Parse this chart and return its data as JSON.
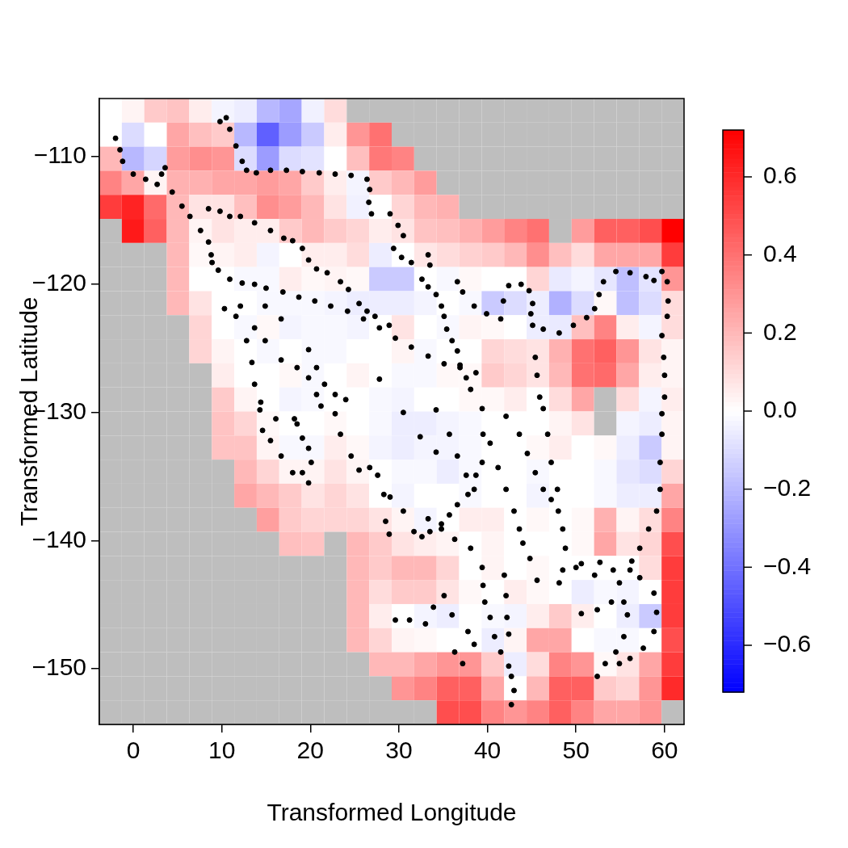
{
  "chart_data": {
    "type": "heatmap",
    "xlabel": "Transformed Longitude",
    "ylabel": "Transformed Latitude",
    "xlim": [
      -3.83,
      62.2
    ],
    "ylim": [
      -154.35,
      -105.5
    ],
    "xticks": [
      0,
      10,
      20,
      30,
      40,
      50,
      60
    ],
    "yticks": [
      {
        "value": -110,
        "label": "−110"
      },
      {
        "value": -120,
        "label": "−120"
      },
      {
        "value": -130,
        "label": "−130"
      },
      {
        "value": -140,
        "label": "−140"
      },
      {
        "value": -150,
        "label": "−150"
      }
    ],
    "clim": [
      -0.72,
      0.72
    ],
    "cticks": [
      {
        "value": 0.6,
        "label": "0.6"
      },
      {
        "value": 0.4,
        "label": "0.4"
      },
      {
        "value": 0.2,
        "label": "0.2"
      },
      {
        "value": 0,
        "label": "0.0"
      },
      {
        "value": -0.2,
        "label": "−0.2"
      },
      {
        "value": -0.4,
        "label": "−0.4"
      },
      {
        "value": -0.6,
        "label": "−0.6"
      }
    ],
    "cells": [
      [
        0.0,
        0.03,
        0.15,
        0.17,
        0.05,
        -0.03,
        -0.05,
        -0.2,
        -0.25,
        -0.04,
        0.1,
        null,
        null,
        null,
        null,
        null,
        null,
        null,
        null,
        null,
        null,
        null,
        null,
        null,
        null,
        null
      ],
      [
        0.0,
        -0.1,
        0.0,
        0.25,
        0.18,
        0.15,
        -0.2,
        -0.45,
        -0.28,
        -0.15,
        0.05,
        0.3,
        0.4,
        null,
        null,
        null,
        null,
        null,
        null,
        null,
        null,
        null,
        null,
        null,
        null,
        null
      ],
      [
        0.2,
        -0.2,
        -0.12,
        0.28,
        0.32,
        0.3,
        -0.1,
        -0.28,
        -0.1,
        -0.08,
        0.0,
        0.18,
        0.38,
        0.35,
        null,
        null,
        null,
        null,
        null,
        null,
        null,
        null,
        null,
        null,
        null,
        null
      ],
      [
        0.35,
        0.25,
        0.03,
        0.22,
        0.22,
        0.25,
        0.25,
        0.28,
        0.25,
        0.15,
        0.05,
        -0.03,
        0.15,
        0.2,
        0.28,
        null,
        null,
        null,
        null,
        null,
        null,
        null,
        null,
        null,
        null,
        null
      ],
      [
        0.55,
        0.62,
        0.42,
        0.2,
        0.08,
        0.08,
        0.18,
        0.32,
        0.28,
        0.2,
        0.08,
        -0.04,
        0.0,
        0.12,
        0.2,
        0.22,
        null,
        null,
        null,
        null,
        null,
        null,
        null,
        null,
        null,
        null
      ],
      [
        null,
        0.65,
        0.45,
        0.2,
        0.03,
        0.08,
        0.05,
        0.05,
        0.15,
        0.2,
        0.15,
        0.12,
        0.05,
        0.08,
        0.17,
        0.18,
        0.22,
        0.28,
        0.35,
        0.4,
        null,
        0.28,
        0.45,
        0.45,
        0.5,
        0.72
      ],
      [
        null,
        null,
        null,
        0.2,
        0.02,
        0.03,
        0.05,
        -0.03,
        0.0,
        0.05,
        0.05,
        0.1,
        -0.05,
        0.0,
        0.07,
        0.1,
        0.13,
        0.15,
        0.2,
        0.32,
        0.18,
        0.1,
        0.25,
        0.25,
        0.25,
        0.55
      ],
      [
        null,
        null,
        null,
        0.2,
        0.0,
        0.0,
        -0.02,
        -0.02,
        0.05,
        0.02,
        0.03,
        0.02,
        -0.15,
        -0.15,
        0.0,
        -0.02,
        0.02,
        0.0,
        0.0,
        0.12,
        -0.06,
        -0.03,
        -0.07,
        -0.18,
        -0.08,
        0.3
      ],
      [
        null,
        null,
        null,
        0.2,
        0.08,
        0.0,
        0.0,
        -0.02,
        -0.02,
        -0.02,
        -0.03,
        -0.05,
        -0.05,
        -0.05,
        -0.03,
        0.0,
        -0.02,
        -0.15,
        -0.1,
        -0.05,
        -0.22,
        -0.1,
        0.02,
        -0.18,
        -0.1,
        0.1
      ],
      [
        null,
        null,
        null,
        null,
        0.12,
        0.0,
        -0.02,
        0.02,
        -0.03,
        -0.02,
        -0.02,
        -0.03,
        0.0,
        0.08,
        0.0,
        -0.02,
        0.03,
        0.02,
        0.0,
        -0.05,
        -0.06,
        0.18,
        0.35,
        0.05,
        -0.03,
        0.1
      ],
      [
        null,
        null,
        null,
        null,
        0.12,
        0.03,
        0.0,
        -0.02,
        0.0,
        -0.02,
        -0.02,
        0.0,
        0.0,
        0.03,
        -0.02,
        0.0,
        0.0,
        0.12,
        0.1,
        0.08,
        0.22,
        0.4,
        0.45,
        0.3,
        0.08,
        0.03
      ],
      [
        null,
        null,
        null,
        null,
        null,
        0.05,
        0.0,
        0.0,
        0.02,
        -0.02,
        0.0,
        0.03,
        0.0,
        -0.02,
        -0.02,
        0.02,
        0.02,
        0.15,
        0.12,
        0.08,
        0.2,
        0.4,
        0.42,
        0.25,
        0.05,
        0.03
      ],
      [
        null,
        null,
        null,
        null,
        null,
        0.15,
        0.03,
        0.0,
        -0.03,
        -0.02,
        0.0,
        0.0,
        -0.02,
        -0.03,
        0.0,
        0.0,
        0.02,
        0.02,
        0.05,
        0.0,
        0.1,
        0.25,
        null,
        0.1,
        -0.03,
        0.05
      ],
      [
        null,
        null,
        null,
        null,
        null,
        0.17,
        0.12,
        0.02,
        0.0,
        0.0,
        0.02,
        0.0,
        -0.02,
        -0.05,
        -0.05,
        -0.03,
        -0.02,
        0.0,
        0.0,
        0.0,
        0.03,
        0.08,
        null,
        -0.03,
        -0.05,
        0.03
      ],
      [
        null,
        null,
        null,
        null,
        null,
        0.17,
        0.17,
        0.03,
        -0.02,
        -0.02,
        0.05,
        0.02,
        -0.03,
        -0.05,
        -0.03,
        -0.03,
        -0.02,
        0.0,
        0.0,
        0.02,
        0.05,
        0.0,
        0.02,
        -0.05,
        -0.15,
        0.03
      ],
      [
        null,
        null,
        null,
        null,
        null,
        null,
        0.2,
        0.12,
        0.03,
        0.03,
        0.08,
        0.03,
        0.0,
        -0.02,
        -0.02,
        -0.05,
        -0.02,
        0.0,
        0.0,
        -0.02,
        0.0,
        0.0,
        -0.02,
        -0.07,
        -0.1,
        0.12
      ],
      [
        null,
        null,
        null,
        null,
        null,
        null,
        0.25,
        0.2,
        0.15,
        0.08,
        0.12,
        0.08,
        0.0,
        -0.03,
        0.0,
        0.0,
        -0.02,
        0.0,
        0.0,
        -0.03,
        0.0,
        0.0,
        -0.02,
        -0.05,
        -0.05,
        0.25
      ],
      [
        null,
        null,
        null,
        null,
        null,
        null,
        null,
        0.27,
        0.15,
        0.12,
        0.12,
        0.12,
        0.08,
        0.03,
        -0.03,
        0.0,
        0.05,
        0.05,
        0.0,
        0.02,
        0.0,
        0.02,
        0.22,
        0.03,
        0.1,
        0.35
      ],
      [
        null,
        null,
        null,
        null,
        null,
        null,
        null,
        null,
        0.18,
        0.17,
        null,
        0.2,
        0.15,
        0.08,
        0.05,
        0.03,
        0.0,
        0.03,
        0.0,
        0.0,
        0.0,
        0.02,
        0.25,
        0.08,
        0.12,
        0.5
      ],
      [
        null,
        null,
        null,
        null,
        null,
        null,
        null,
        null,
        null,
        null,
        null,
        0.2,
        0.15,
        0.2,
        0.2,
        0.12,
        0.0,
        0.03,
        0.0,
        0.02,
        0.0,
        0.0,
        0.0,
        0.0,
        0.1,
        0.55
      ],
      [
        null,
        null,
        null,
        null,
        null,
        null,
        null,
        null,
        null,
        null,
        null,
        0.2,
        0.1,
        0.15,
        0.15,
        0.08,
        0.02,
        0.0,
        0.05,
        0.02,
        0.0,
        -0.05,
        -0.02,
        -0.03,
        0.0,
        0.55
      ],
      [
        null,
        null,
        null,
        null,
        null,
        null,
        null,
        null,
        null,
        null,
        null,
        0.2,
        0.05,
        0.0,
        -0.03,
        -0.05,
        0.0,
        -0.02,
        -0.03,
        0.05,
        0.15,
        0.05,
        0.0,
        -0.05,
        -0.15,
        0.55
      ],
      [
        null,
        null,
        null,
        null,
        null,
        null,
        null,
        null,
        null,
        null,
        null,
        0.2,
        0.12,
        0.03,
        0.02,
        0.0,
        0.0,
        -0.05,
        0.03,
        0.25,
        0.25,
        0.0,
        -0.02,
        -0.02,
        0.0,
        0.5
      ],
      [
        null,
        null,
        null,
        null,
        null,
        null,
        null,
        null,
        null,
        null,
        null,
        null,
        0.2,
        0.2,
        0.25,
        0.3,
        0.3,
        0.15,
        -0.05,
        0.1,
        0.35,
        0.3,
        0.02,
        0.08,
        0.25,
        0.55
      ],
      [
        null,
        null,
        null,
        null,
        null,
        null,
        null,
        null,
        null,
        null,
        null,
        null,
        null,
        0.3,
        0.35,
        0.45,
        0.45,
        0.25,
        0.0,
        0.2,
        0.45,
        0.45,
        0.15,
        0.12,
        0.3,
        0.6
      ],
      [
        null,
        null,
        null,
        null,
        null,
        null,
        null,
        null,
        null,
        null,
        null,
        null,
        null,
        null,
        null,
        0.5,
        0.5,
        0.35,
        0.3,
        0.35,
        0.45,
        0.35,
        0.25,
        0.25,
        0.3,
        null
      ]
    ],
    "marker": "circle",
    "series": [
      {
        "type": "scatter",
        "color": "#000000",
        "x": [
          -2.0,
          -1.5,
          -1.2,
          0.0,
          1.4,
          2.7,
          3.2,
          3.6,
          9.8,
          10.5,
          10.9,
          11.6,
          12.3,
          12.8,
          13.9,
          15.5,
          17.3,
          19.1,
          21.0,
          22.8,
          24.6,
          26.4,
          26.7,
          26.6,
          26.9,
          4.4,
          5.5,
          6.4,
          7.6,
          8.5,
          8.8,
          8.9,
          9.6,
          10.9,
          12.3,
          13.7,
          15.0,
          16.9,
          18.7,
          20.5,
          22.3,
          24.2,
          26.0,
          27.8,
          29.6,
          31.4,
          33.3,
          35.1,
          36.9,
          38.7,
          8.5,
          9.8,
          10.9,
          12.1,
          13.7,
          15.5,
          17.0,
          18.0,
          19.1,
          19.8,
          20.7,
          21.9,
          23.4,
          24.3,
          25.5,
          26.4,
          27.3,
          28.9,
          32.6,
          33.3,
          34.2,
          34.8,
          35.1,
          35.4,
          36.0,
          36.6,
          36.9,
          37.6,
          38.1,
          36.6,
          37.2,
          38.5,
          39.9,
          41.5,
          41.8,
          42.4,
          43.8,
          44.7,
          45.1,
          44.9,
          45.1,
          46.3,
          48.1,
          49.7,
          51.2,
          52.1,
          52.6,
          53.1,
          54.5,
          56.1,
          57.9,
          58.8,
          59.7,
          60.3,
          60.4,
          60.3,
          59.7,
          59.9,
          60.0,
          60.0,
          29.0,
          29.9,
          30.5,
          29.4,
          30.3,
          31.4,
          33.3,
          33.5,
          45.4,
          45.6,
          45.9,
          46.3,
          46.8,
          47.2,
          47.9,
          48.0,
          48.5,
          48.8,
          48.5,
          48.1,
          39.4,
          39.5,
          39.4,
          38.7,
          37.8,
          36.6,
          35.7,
          34.8,
          33.5,
          32.6,
          42.1,
          43.6,
          44.5,
          45.4,
          46.3,
          47.2,
          40.3,
          41.2,
          42.1,
          43.0,
          43.6,
          44.0,
          44.8,
          45.6,
          39.4,
          39.5,
          39.7,
          40.3,
          40.8,
          41.5,
          42.4,
          42.7,
          43.0,
          42.7,
          41.9,
          42.1,
          42.2,
          42.4,
          29.6,
          31.2,
          33.0,
          33.9,
          35.1,
          36.0,
          37.8,
          38.5,
          36.3,
          37.2,
          50.6,
          52.7,
          54.2,
          54.9,
          55.4,
          55.8,
          55.4,
          54.5,
          53.3,
          52.4,
          56.1,
          57.2,
          58.8,
          59.1,
          58.8,
          57.6,
          56.1,
          54.9,
          50.0,
          52.1,
          50.6,
          52.4,
          54.0,
          59.7,
          59.7,
          59.5,
          59.5,
          59.1,
          58.2,
          57.2,
          56.3,
          34.2,
          35.7,
          36.6,
          37.6,
          38.5,
          29.0,
          30.5,
          31.7,
          33.3,
          34.8,
          36.3,
          38.1,
          14.3,
          14.6,
          15.5,
          16.7,
          18.0,
          19.1,
          19.8,
          20.1,
          19.8,
          19.1,
          18.5,
          18.2,
          16.1,
          10.3,
          11.6,
          12.8,
          13.4,
          13.7,
          14.4,
          12.1,
          13.7,
          14.9,
          16.7,
          18.5,
          19.8,
          20.7,
          21.2,
          14.9,
          16.7,
          19.8,
          20.7,
          21.6,
          22.8,
          24.0,
          22.8,
          23.4,
          24.6,
          25.5,
          26.7,
          27.6,
          28.3,
          28.5,
          28.9,
          27.8,
          30.5,
          32.4,
          34.2
        ],
        "values": [
          -108.6,
          -109.5,
          -110.4,
          -111.4,
          -111.8,
          -112.2,
          -111.4,
          -110.9,
          -107.3,
          -107.0,
          -107.9,
          -109.2,
          -110.4,
          -111.1,
          -111.3,
          -111.1,
          -111.1,
          -111.2,
          -111.3,
          -111.4,
          -111.5,
          -111.8,
          -112.6,
          -113.6,
          -114.5,
          -112.8,
          -113.9,
          -114.7,
          -115.8,
          -116.7,
          -117.7,
          -118.3,
          -118.9,
          -119.6,
          -119.9,
          -120.0,
          -120.3,
          -120.6,
          -121.0,
          -121.3,
          -121.7,
          -122.1,
          -122.7,
          -123.4,
          -124.2,
          -124.9,
          -125.6,
          -126.2,
          -126.5,
          -126.9,
          -114.1,
          -114.3,
          -114.7,
          -114.7,
          -115.2,
          -115.8,
          -116.4,
          -116.6,
          -117.2,
          -118.1,
          -118.8,
          -119.1,
          -119.8,
          -120.4,
          -121.5,
          -122.1,
          -122.5,
          -123.2,
          -119.6,
          -120.2,
          -120.8,
          -121.7,
          -122.5,
          -123.5,
          -124.4,
          -125.2,
          -126.3,
          -127.3,
          -128.2,
          -119.8,
          -120.6,
          -121.7,
          -122.3,
          -122.7,
          -121.3,
          -120.1,
          -120.0,
          -120.5,
          -121.5,
          -122.3,
          -123.2,
          -123.5,
          -123.8,
          -123.2,
          -122.6,
          -121.9,
          -120.8,
          -119.8,
          -119.0,
          -119.1,
          -119.4,
          -119.7,
          -119.0,
          -119.8,
          -121.3,
          -122.5,
          -124.0,
          -125.7,
          -127.1,
          -128.8,
          -114.5,
          -115.4,
          -116.2,
          -117.2,
          -117.9,
          -118.3,
          -117.7,
          -118.5,
          -125.7,
          -127.1,
          -128.8,
          -129.7,
          -131.7,
          -133.9,
          -136.0,
          -137.7,
          -139.1,
          -140.6,
          -142.3,
          -143.3,
          -129.7,
          -131.7,
          -133.9,
          -134.9,
          -136.4,
          -137.2,
          -138.0,
          -138.7,
          -139.3,
          -139.7,
          -130.3,
          -131.7,
          -133.2,
          -134.7,
          -136.0,
          -136.8,
          -132.4,
          -134.3,
          -136.0,
          -137.7,
          -139.1,
          -140.2,
          -141.4,
          -143.1,
          -142.1,
          -143.5,
          -144.8,
          -146.0,
          -147.5,
          -148.7,
          -149.8,
          -150.6,
          -151.7,
          -152.8,
          -142.7,
          -144.3,
          -146.0,
          -147.3,
          -146.2,
          -146.2,
          -146.5,
          -145.2,
          -144.3,
          -145.8,
          -147.1,
          -148.1,
          -148.7,
          -149.6,
          -141.8,
          -141.7,
          -142.3,
          -143.3,
          -144.8,
          -145.8,
          -147.5,
          -148.7,
          -149.6,
          -150.6,
          -142.3,
          -142.9,
          -144.1,
          -145.6,
          -147.1,
          -148.4,
          -149.2,
          -149.6,
          -142.1,
          -142.7,
          -145.7,
          -145.4,
          -144.8,
          -130.1,
          -131.7,
          -133.9,
          -136.0,
          -137.7,
          -139.1,
          -140.6,
          -141.6,
          -129.8,
          -131.7,
          -133.4,
          -134.9,
          -136.0,
          -136.6,
          -137.7,
          -139.3,
          -138.3,
          -139.1,
          -139.9,
          -140.6,
          -129.8,
          -131.4,
          -132.2,
          -133.4,
          -134.7,
          -134.7,
          -135.5,
          -133.9,
          -132.8,
          -132.0,
          -130.9,
          -130.5,
          -130.5,
          -121.9,
          -122.5,
          -124.4,
          -126.1,
          -127.8,
          -129.2,
          -121.7,
          -123.4,
          -124.4,
          -125.9,
          -126.5,
          -127.3,
          -128.6,
          -129.5,
          -121.7,
          -122.7,
          -125.1,
          -126.5,
          -127.8,
          -128.6,
          -129.0,
          -130.1,
          -131.7,
          -133.4,
          -134.5,
          -134.3,
          -134.9,
          -136.4,
          -138.5,
          -139.5,
          -127.4,
          -130.0,
          -131.9,
          -133.1
        ]
      }
    ]
  }
}
